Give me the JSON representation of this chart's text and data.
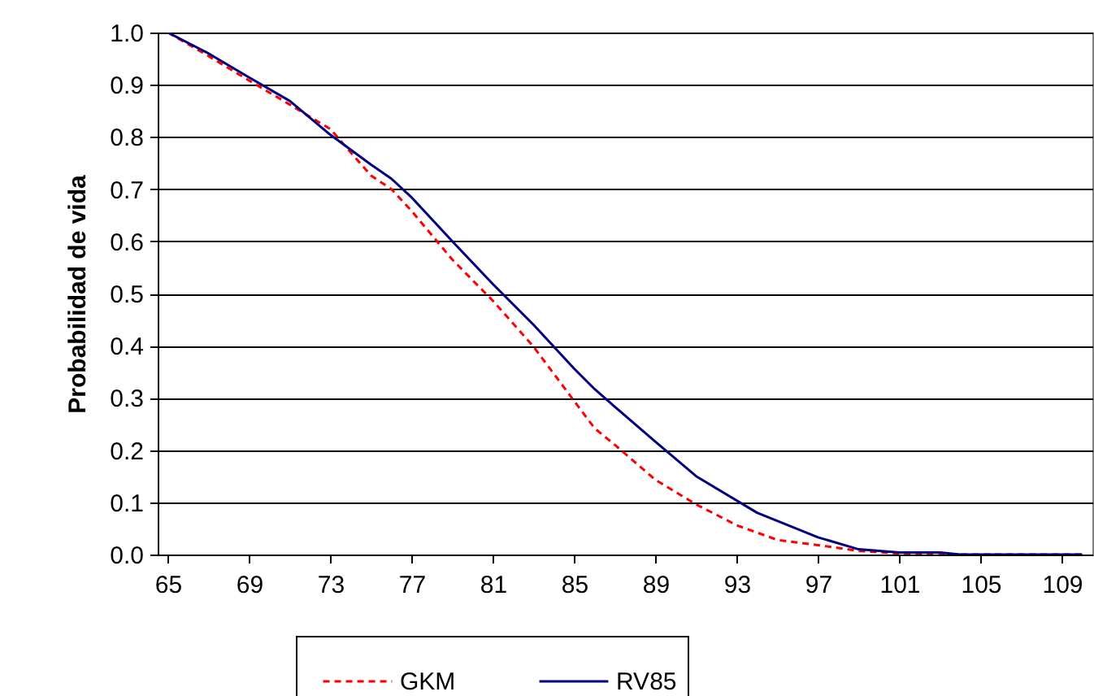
{
  "chart_data": {
    "type": "line",
    "ylabel": "Probabilidad de vida",
    "xlim": [
      64.5,
      110.5
    ],
    "xticks": [
      65,
      69,
      73,
      77,
      81,
      85,
      89,
      93,
      97,
      101,
      105,
      109
    ],
    "ylim": [
      0,
      1
    ],
    "yticks": [
      {
        "value": 0,
        "label": "0.0"
      },
      {
        "value": 0.1,
        "label": "0.1"
      },
      {
        "value": 0.2,
        "label": "0.2"
      },
      {
        "value": 0.3,
        "label": "0.3"
      },
      {
        "value": 0.4,
        "label": "0.4"
      },
      {
        "value": 0.5,
        "label": "0.5"
      },
      {
        "value": 0.6,
        "label": "0.6"
      },
      {
        "value": 0.7,
        "label": "0.7"
      },
      {
        "value": 0.8,
        "label": "0.8"
      },
      {
        "value": 0.9,
        "label": "0.9"
      },
      {
        "value": 1,
        "label": "1.0"
      }
    ],
    "grid": "y",
    "legend": "bottom",
    "marker": "none",
    "series": [
      {
        "name": "GKM",
        "color": "#ff0000",
        "line_style": "dashed",
        "x": [
          65,
          67,
          69,
          71,
          73,
          75,
          76,
          77,
          79,
          81,
          83,
          85,
          86,
          87,
          89,
          91,
          93,
          95,
          97,
          99,
          101,
          103,
          110
        ],
        "values": [
          1.0,
          0.955,
          0.908,
          0.862,
          0.815,
          0.726,
          0.7,
          0.658,
          0.565,
          0.486,
          0.398,
          0.294,
          0.242,
          0.21,
          0.143,
          0.096,
          0.056,
          0.028,
          0.018,
          0.007,
          0.002,
          0,
          0
        ]
      },
      {
        "name": "RV85",
        "color": "#000080",
        "line_style": "solid",
        "x": [
          65,
          67,
          69,
          71,
          73,
          75,
          76,
          77,
          79,
          81,
          83,
          85,
          86,
          87,
          89,
          91,
          94,
          97,
          99,
          101,
          103,
          104,
          110
        ],
        "values": [
          1.0,
          0.96,
          0.914,
          0.869,
          0.804,
          0.747,
          0.72,
          0.684,
          0.6,
          0.518,
          0.44,
          0.356,
          0.317,
          0.283,
          0.216,
          0.15,
          0.08,
          0.033,
          0.01,
          0.004,
          0.004,
          0,
          0
        ]
      }
    ]
  }
}
